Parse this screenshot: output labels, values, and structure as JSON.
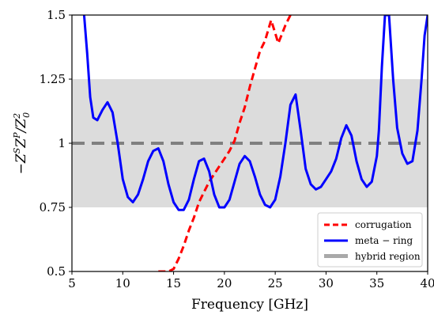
{
  "chart_data": {
    "type": "line",
    "xlabel": "Frequency [GHz]",
    "ylabel_parts": [
      "−Z",
      "S",
      "Z",
      "P",
      "/Z",
      "2",
      "0"
    ],
    "xlim": [
      5,
      40
    ],
    "ylim": [
      0.5,
      1.5
    ],
    "xticks": [
      5,
      10,
      15,
      20,
      25,
      30,
      35,
      40
    ],
    "yticks": [
      0.5,
      0.75,
      1,
      1.25,
      1.5
    ],
    "ytick_labels": [
      "0.5",
      "0.75",
      "1",
      "1.25",
      "1.5"
    ],
    "grid": false,
    "legend_placement": "lower-right",
    "hybrid_band": {
      "y0": 0.75,
      "y1": 1.25,
      "color": "#dcdcdc"
    },
    "reference_line": {
      "y": 1.0,
      "color": "#808080"
    },
    "series": [
      {
        "name": "corrugation",
        "color": "#ff0000",
        "style": "dashed",
        "x": [
          13.5,
          14.0,
          14.5,
          15.0,
          15.5,
          16.0,
          16.5,
          17.0,
          17.5,
          18.0,
          18.5,
          19.0,
          19.5,
          20.0,
          20.5,
          21.0,
          21.5,
          22.0,
          22.5,
          23.0,
          23.5,
          24.0,
          24.3,
          24.6,
          25.0,
          25.3,
          25.6,
          26.0,
          26.5
        ],
        "y": [
          0.5,
          0.5,
          0.5,
          0.51,
          0.55,
          0.6,
          0.66,
          0.71,
          0.77,
          0.81,
          0.85,
          0.88,
          0.91,
          0.94,
          0.97,
          1.01,
          1.08,
          1.14,
          1.22,
          1.29,
          1.36,
          1.4,
          1.44,
          1.48,
          1.43,
          1.39,
          1.42,
          1.46,
          1.5
        ]
      },
      {
        "name": "meta − ring",
        "color": "#0000ff",
        "style": "solid",
        "x": [
          6.2,
          6.5,
          6.8,
          7.1,
          7.5,
          8.0,
          8.5,
          9.0,
          9.5,
          10.0,
          10.5,
          11.0,
          11.5,
          12.0,
          12.5,
          13.0,
          13.5,
          14.0,
          14.5,
          15.0,
          15.5,
          16.0,
          16.5,
          17.0,
          17.5,
          18.0,
          18.5,
          19.0,
          19.5,
          20.0,
          20.5,
          21.0,
          21.5,
          22.0,
          22.5,
          23.0,
          23.5,
          24.0,
          24.5,
          25.0,
          25.5,
          26.0,
          26.5,
          27.0,
          27.5,
          28.0,
          28.5,
          29.0,
          29.5,
          30.0,
          30.5,
          31.0,
          31.5,
          32.0,
          32.5,
          33.0,
          33.5,
          34.0,
          34.5,
          35.0,
          35.2,
          35.5,
          35.8,
          36.2,
          36.6,
          37.0,
          37.5,
          38.0,
          38.5,
          39.0,
          39.4,
          39.7,
          40.0
        ],
        "y": [
          1.5,
          1.35,
          1.18,
          1.1,
          1.09,
          1.13,
          1.16,
          1.12,
          1.0,
          0.86,
          0.79,
          0.77,
          0.8,
          0.86,
          0.93,
          0.97,
          0.98,
          0.93,
          0.84,
          0.77,
          0.74,
          0.74,
          0.78,
          0.86,
          0.93,
          0.94,
          0.89,
          0.8,
          0.75,
          0.75,
          0.78,
          0.85,
          0.92,
          0.95,
          0.93,
          0.87,
          0.8,
          0.76,
          0.75,
          0.78,
          0.87,
          1.0,
          1.15,
          1.19,
          1.05,
          0.9,
          0.84,
          0.82,
          0.83,
          0.86,
          0.89,
          0.94,
          1.02,
          1.07,
          1.03,
          0.93,
          0.86,
          0.83,
          0.85,
          0.95,
          1.05,
          1.3,
          1.5,
          1.5,
          1.25,
          1.06,
          0.96,
          0.92,
          0.93,
          1.05,
          1.25,
          1.42,
          1.5
        ]
      }
    ],
    "legend": [
      {
        "label": "corrugation",
        "kind": "line-dashed",
        "color": "#ff0000"
      },
      {
        "label": "meta − ring",
        "kind": "line-solid",
        "color": "#0000ff"
      },
      {
        "label": "hybrid region",
        "kind": "band",
        "color": "#a9a9a9"
      }
    ]
  }
}
